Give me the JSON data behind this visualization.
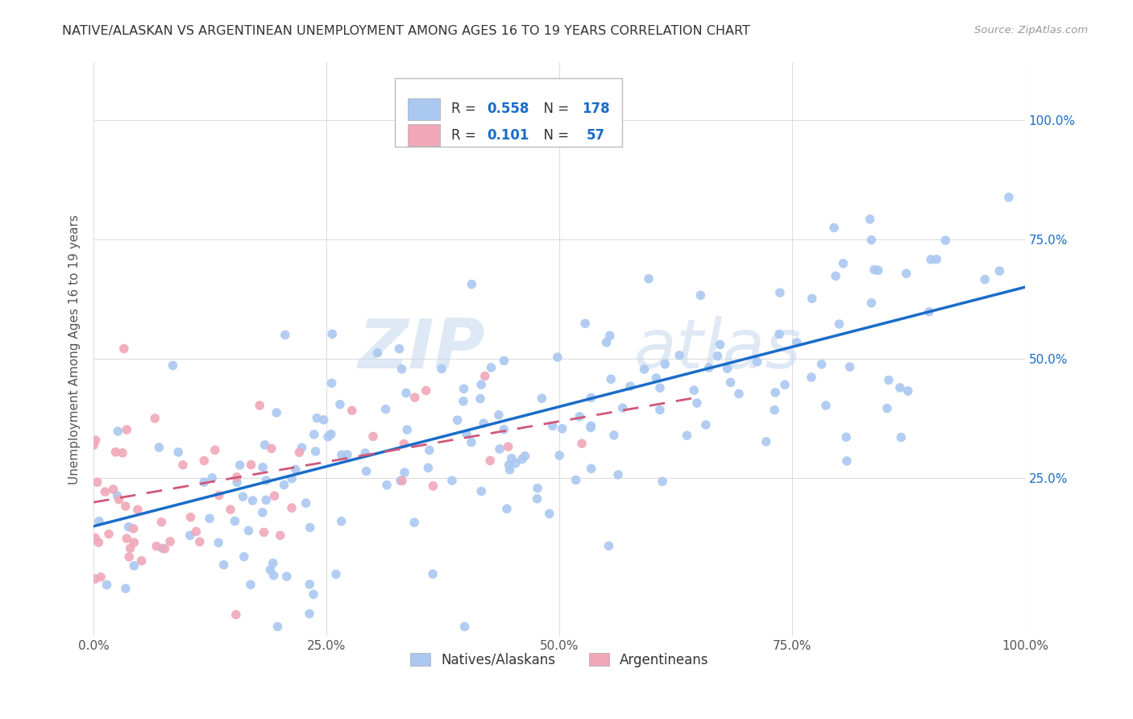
{
  "title": "NATIVE/ALASKAN VS ARGENTINEAN UNEMPLOYMENT AMONG AGES 16 TO 19 YEARS CORRELATION CHART",
  "source": "Source: ZipAtlas.com",
  "ylabel": "Unemployment Among Ages 16 to 19 years",
  "xlim": [
    0,
    1.0
  ],
  "ylim": [
    -0.08,
    1.12
  ],
  "xtick_labels": [
    "0.0%",
    "25.0%",
    "50.0%",
    "75.0%",
    "100.0%"
  ],
  "xtick_positions": [
    0.0,
    0.25,
    0.5,
    0.75,
    1.0
  ],
  "right_ytick_labels": [
    "25.0%",
    "50.0%",
    "75.0%",
    "100.0%"
  ],
  "right_ytick_positions": [
    0.25,
    0.5,
    0.75,
    1.0
  ],
  "blue_R": "0.558",
  "blue_N": "178",
  "pink_R": "0.101",
  "pink_N": "57",
  "blue_color": "#aac8f0",
  "pink_color": "#f0a8b8",
  "blue_line_color": "#1a6cc8",
  "pink_line_color": "#d05878",
  "watermark_zip": "ZIP",
  "watermark_atlas": "atlas",
  "legend_label_blue": "Natives/Alaskans",
  "legend_label_pink": "Argentineans",
  "blue_line_x": [
    0.0,
    1.0
  ],
  "blue_line_y": [
    0.15,
    0.65
  ],
  "pink_line_x": [
    0.0,
    0.65
  ],
  "pink_line_y": [
    0.2,
    0.42
  ],
  "background_color": "#ffffff",
  "grid_color": "#dddddd",
  "title_color": "#333333",
  "source_color": "#999999",
  "axis_label_color": "#555555",
  "tick_label_color": "#555555"
}
